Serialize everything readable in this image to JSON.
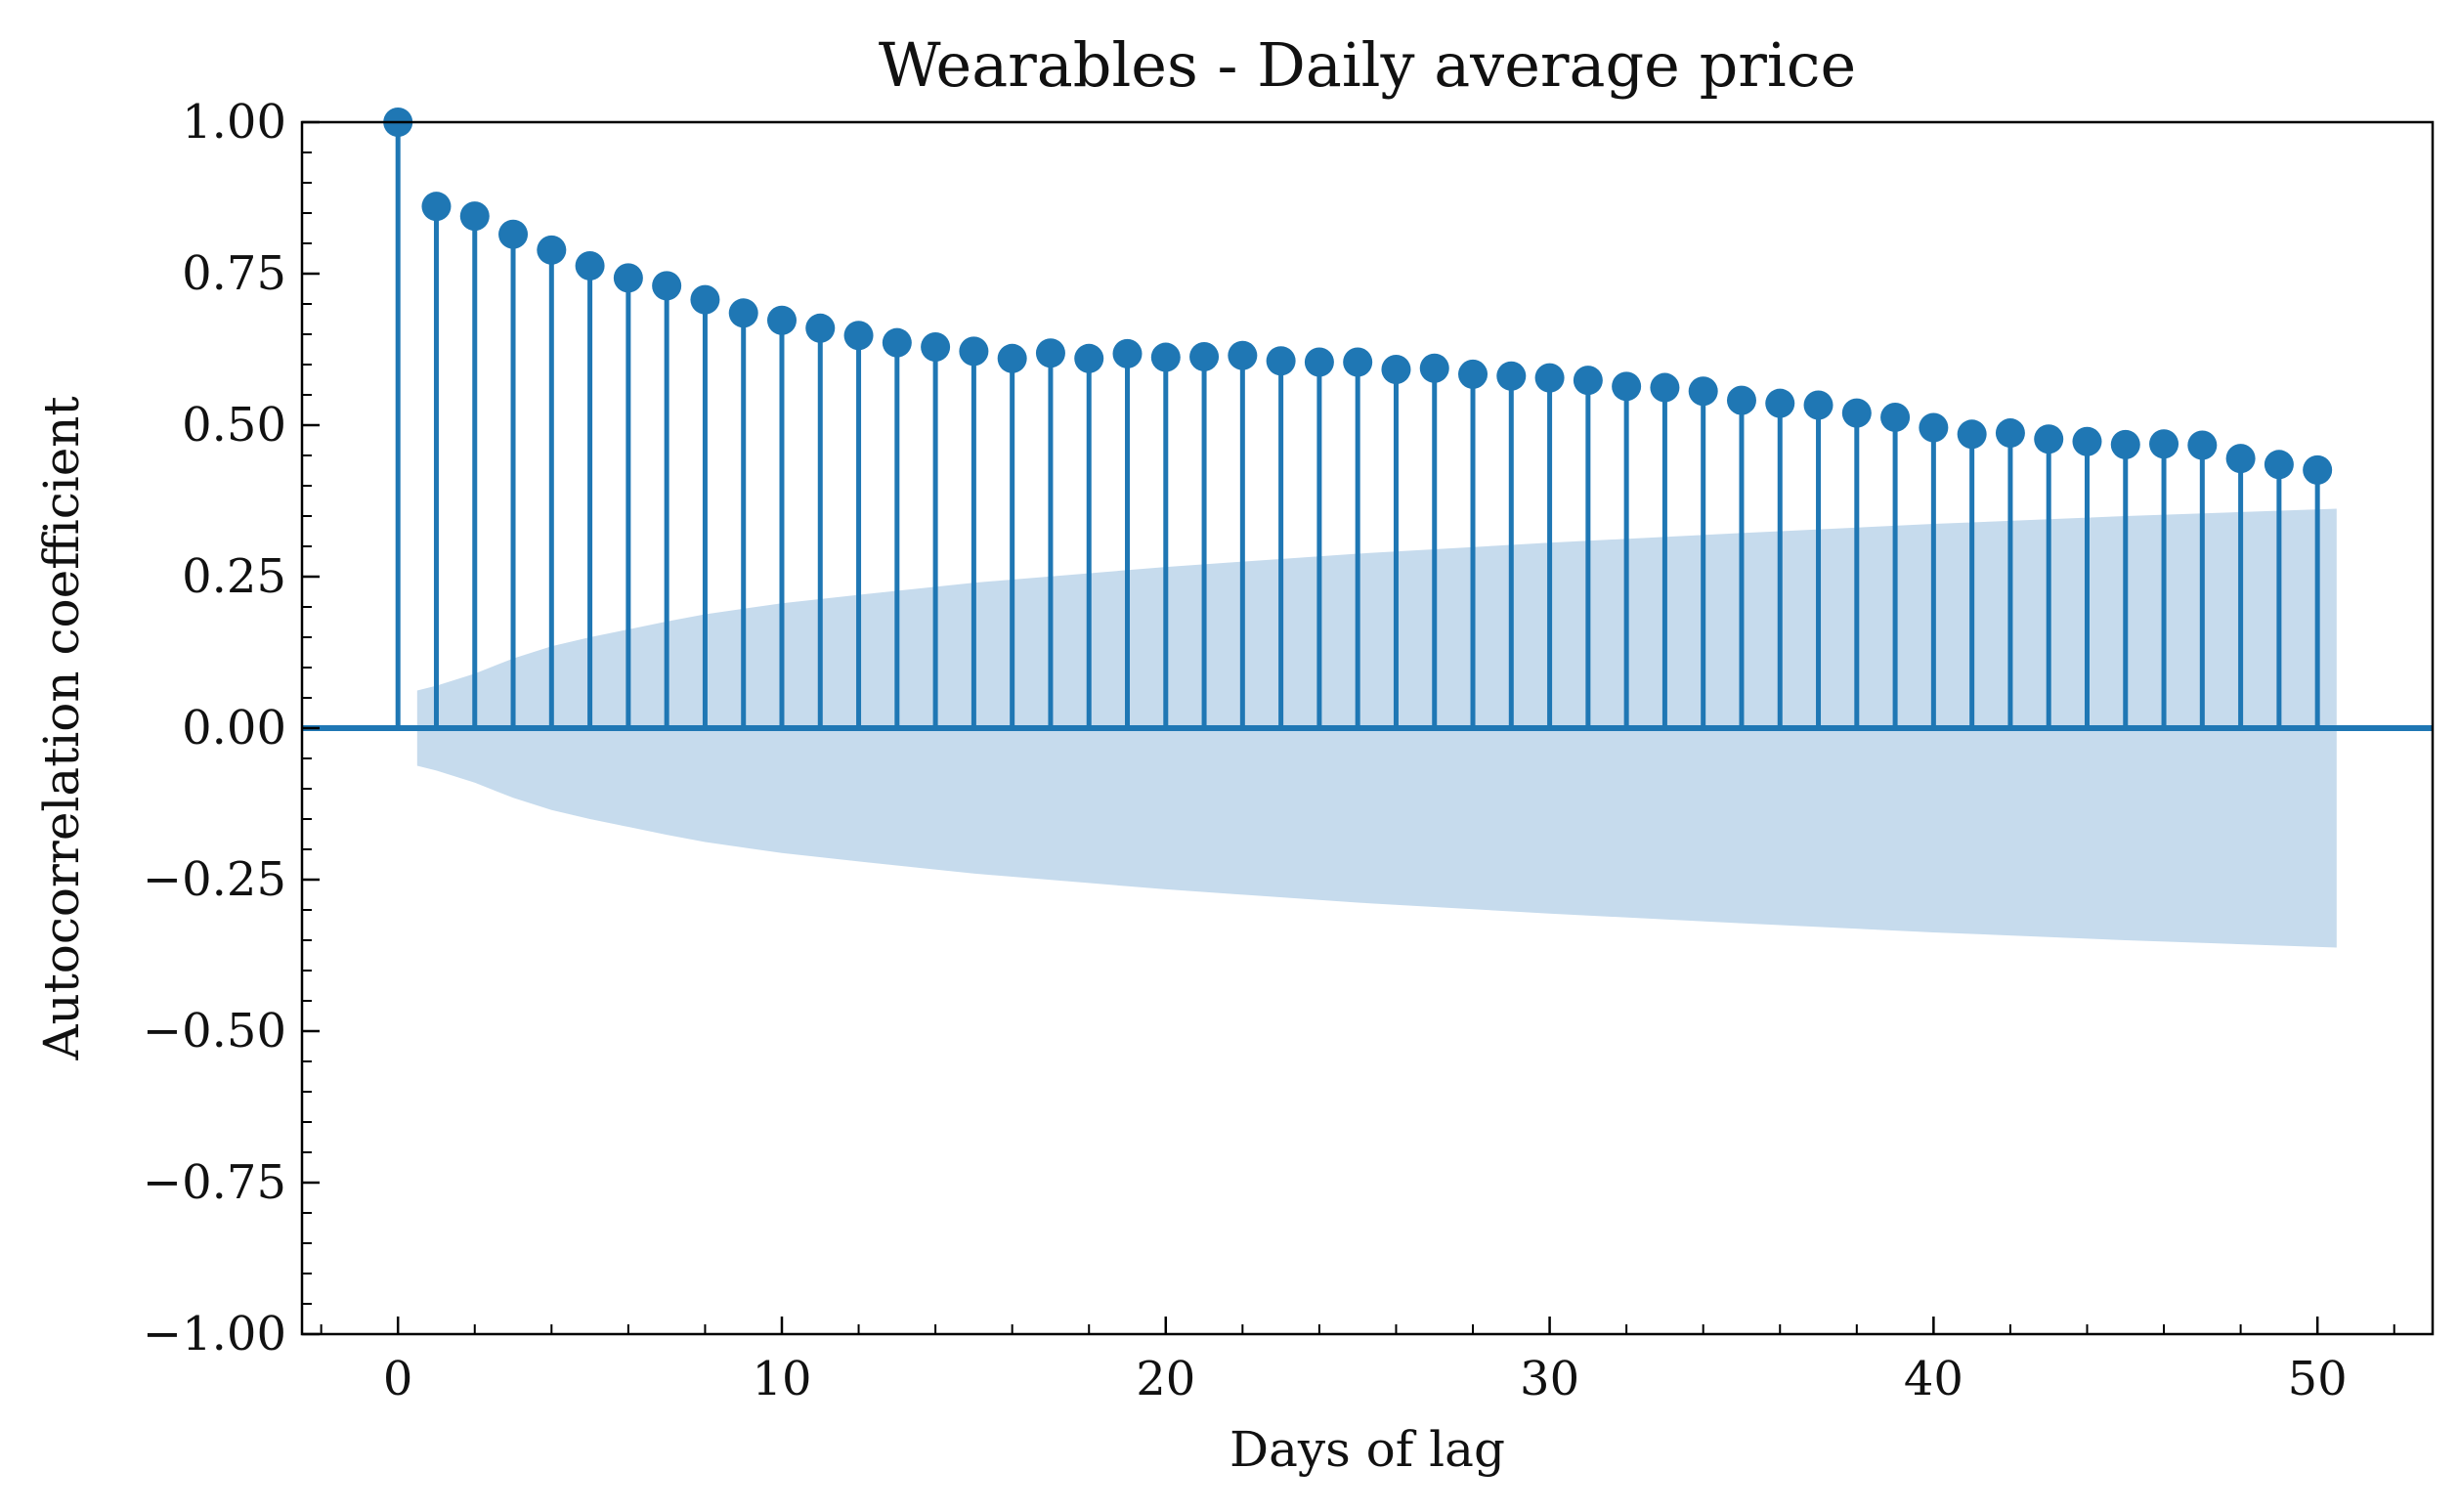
{
  "chart_data": {
    "type": "stem",
    "title": "Wearables - Daily average price",
    "xlabel": "Days of lag",
    "ylabel": "Autocorrelation coefficient",
    "xlim": [
      -2.5,
      53
    ],
    "ylim": [
      -1.0,
      1.0
    ],
    "x_ticks": [
      0,
      10,
      20,
      30,
      40,
      50
    ],
    "y_ticks": [
      1.0,
      0.75,
      0.5,
      0.25,
      0.0,
      -0.25,
      -0.5,
      -0.75,
      -1.0
    ],
    "x_tick_labels": [
      "0",
      "10",
      "20",
      "30",
      "40",
      "50"
    ],
    "y_tick_labels": [
      "1.00",
      "0.75",
      "0.50",
      "0.25",
      "0.00",
      "−0.25",
      "−0.50",
      "−0.75",
      "−1.00"
    ],
    "lags": [
      0,
      1,
      2,
      3,
      4,
      5,
      6,
      7,
      8,
      9,
      10,
      11,
      12,
      13,
      14,
      15,
      16,
      17,
      18,
      19,
      20,
      21,
      22,
      23,
      24,
      25,
      26,
      27,
      28,
      29,
      30,
      31,
      32,
      33,
      34,
      35,
      36,
      37,
      38,
      39,
      40,
      41,
      42,
      43,
      44,
      45,
      46,
      47,
      48,
      49,
      50
    ],
    "acf": [
      1.0,
      0.861,
      0.845,
      0.815,
      0.789,
      0.763,
      0.743,
      0.73,
      0.707,
      0.685,
      0.673,
      0.66,
      0.648,
      0.636,
      0.629,
      0.622,
      0.61,
      0.619,
      0.61,
      0.618,
      0.612,
      0.613,
      0.615,
      0.606,
      0.604,
      0.604,
      0.592,
      0.594,
      0.584,
      0.581,
      0.578,
      0.574,
      0.564,
      0.562,
      0.556,
      0.541,
      0.536,
      0.533,
      0.52,
      0.513,
      0.496,
      0.485,
      0.487,
      0.477,
      0.473,
      0.468,
      0.469,
      0.467,
      0.445,
      0.435,
      0.426
    ],
    "confidence_band": {
      "x": [
        0.5,
        1,
        2,
        3,
        4,
        5,
        6,
        7,
        8,
        10,
        12,
        15,
        20,
        25,
        30,
        35,
        40,
        45,
        50.5
      ],
      "upper": [
        0.062,
        0.07,
        0.09,
        0.115,
        0.135,
        0.15,
        0.163,
        0.176,
        0.188,
        0.206,
        0.22,
        0.24,
        0.266,
        0.288,
        0.306,
        0.322,
        0.337,
        0.35,
        0.362
      ]
    },
    "colors": {
      "stem": "#1f77b4",
      "band": "#c6dbed",
      "axis": "#000000"
    },
    "grid": false,
    "legend": "none"
  }
}
